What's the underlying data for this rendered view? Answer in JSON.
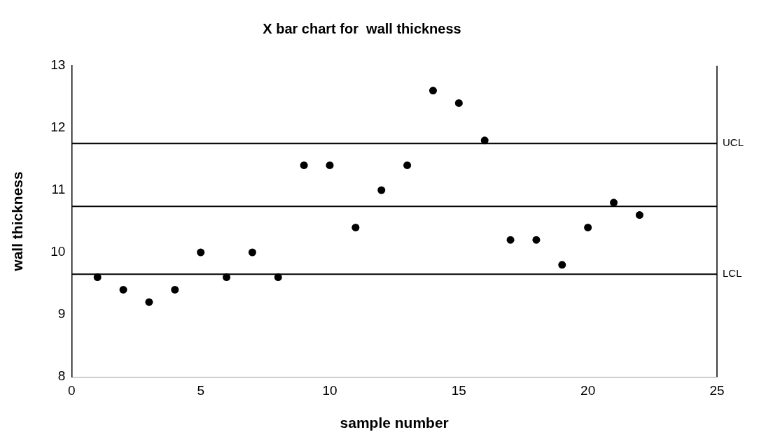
{
  "chart_data": {
    "type": "scatter",
    "title": "X bar chart for  wall thickness",
    "xlabel": "sample number",
    "ylabel": "wall thickness",
    "x": [
      1,
      2,
      3,
      4,
      5,
      6,
      7,
      8,
      9,
      10,
      11,
      12,
      13,
      14,
      15,
      16,
      17,
      18,
      19,
      20,
      21,
      22
    ],
    "series": [
      {
        "color": "#000000",
        "values": [
          9.6,
          9.4,
          9.2,
          9.4,
          10.0,
          9.6,
          10.0,
          9.6,
          11.4,
          11.4,
          10.4,
          11.0,
          11.4,
          12.6,
          12.4,
          11.8,
          10.2,
          10.2,
          9.8,
          10.4,
          10.8,
          10.6
        ]
      }
    ],
    "xlim": [
      0,
      25
    ],
    "xticks": [
      0,
      5,
      10,
      15,
      20,
      25
    ],
    "ylim": [
      8,
      13
    ],
    "yticks": [
      8,
      9,
      10,
      11,
      12,
      13
    ],
    "ref_lines": [
      {
        "axis": "y",
        "value": 11.75,
        "label": "UCL",
        "color": "#000000"
      },
      {
        "axis": "y",
        "value": 10.74,
        "label": null,
        "color": "#000000"
      },
      {
        "axis": "y",
        "value": 9.65,
        "label": "LCL",
        "color": "#000000"
      }
    ],
    "grid": false,
    "legend": false,
    "marker": "circle"
  }
}
